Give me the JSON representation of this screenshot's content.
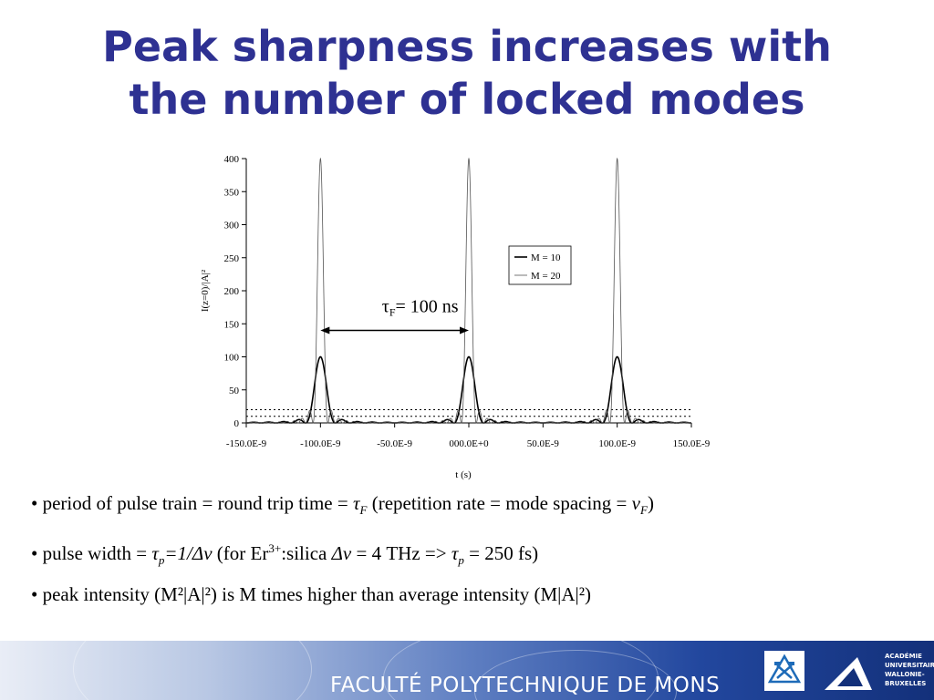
{
  "slide": {
    "title_line1": "Peak sharpness increases with",
    "title_line2": "the number of locked modes"
  },
  "chart_data": {
    "type": "line",
    "xlabel": "t (s)",
    "ylabel": "I(z=0)/|A|²",
    "xlim": [
      -1.5e-07,
      1.5e-07
    ],
    "ylim": [
      0,
      400
    ],
    "x_tick_labels": [
      "-150.0E-9",
      "-100.0E-9",
      "-50.0E-9",
      "000.0E+0",
      "50.0E-9",
      "100.0E-9",
      "150.0E-9"
    ],
    "x_tick_values": [
      -1.5e-07,
      -1e-07,
      -5e-08,
      0,
      5e-08,
      1e-07,
      1.5e-07
    ],
    "y_ticks": [
      0,
      50,
      100,
      150,
      200,
      250,
      300,
      350,
      400
    ],
    "period": 1e-07,
    "peak_positions": [
      -1e-07,
      0,
      1e-07
    ],
    "series": [
      {
        "name": "M = 10",
        "peak_value": 100,
        "average_value": 10,
        "color": "#000000",
        "stroke_width": 1.6
      },
      {
        "name": "M = 20",
        "peak_value": 400,
        "average_value": 20,
        "color": "#555555",
        "stroke_width": 0.8
      }
    ],
    "legend_position": "right",
    "annotation": {
      "text_symbol": "τ",
      "text_sub": "F",
      "text_rest": "= 100 ns",
      "from": -1e-07,
      "to": 0,
      "y": 140
    }
  },
  "bullets": [
    {
      "t1": "• period of pulse train = round trip time = ",
      "tau": "τ",
      "tau_sub": "F",
      "t2": " (repetition rate = mode spacing = ",
      "nu": "ν",
      "nu_sub": "F",
      "t3": ")"
    },
    {
      "t1": "• pulse width = ",
      "tau": "τ",
      "tau_sub": "p",
      "eq": "=1/Δν",
      "t2": " (for Er",
      "sup": "3+",
      "t3": ":silica  ",
      "dnu": "Δν",
      "t4": " = 4 THz => ",
      "tau2": "τ",
      "tau2_sub": "p",
      "t5": " = 250 fs)"
    },
    {
      "text": "• peak intensity (M²|A|²) is M times higher than average intensity (M|A|²)"
    }
  ],
  "footer": {
    "institution": "FACULTÉ POLYTECHNIQUE DE MONS",
    "academy_line1": "ACADÉMIE",
    "academy_line2": "UNIVERSITAIRE",
    "academy_line3": "WALLONIE-",
    "academy_line4": "BRUXELLES"
  }
}
